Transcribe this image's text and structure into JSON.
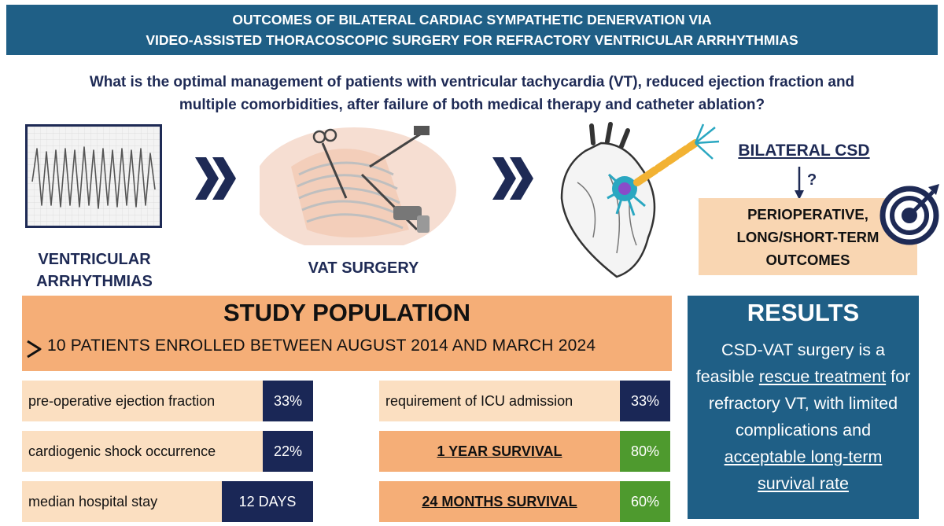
{
  "header": {
    "line1": "OUTCOMES OF BILATERAL CARDIAC SYMPATHETIC DENERVATION VIA",
    "line2": "VIDEO-ASSISTED THORACOSCOPIC SURGERY FOR REFRACTORY VENTRICULAR ARRHYTHMIAS"
  },
  "question": {
    "line1": "What is the optimal management of patients with ventricular tachycardia (VT), reduced ejection fraction and",
    "line2": "multiple comorbidities, after failure of both medical therapy and catheter ablation?"
  },
  "flow": {
    "ecg_label_line1": "VENTRICULAR",
    "ecg_label_line2": "ARRHYTHMIAS",
    "surgery_label": "VAT SURGERY",
    "csd_title": "BILATERAL CSD",
    "question_mark": "?",
    "outcome_line1": "PERIOPERATIVE,",
    "outcome_line2": "LONG/SHORT-TERM",
    "outcome_line3": "OUTCOMES"
  },
  "study": {
    "title": "STUDY POPULATION",
    "subtitle": "10 PATIENTS ENROLLED BETWEEN AUGUST 2014 AND MARCH 2024"
  },
  "stats_left": [
    {
      "label": "pre-operative ejection fraction",
      "value": "33%"
    },
    {
      "label": "cardiogenic shock occurrence",
      "value": "22%"
    },
    {
      "label": "median hospital stay",
      "value": "12 DAYS"
    }
  ],
  "stats_right": [
    {
      "label": "requirement of ICU admission",
      "value": "33%"
    },
    {
      "label": "1 YEAR SURVIVAL",
      "value": "80%"
    },
    {
      "label": "24 MONTHS SURVIVAL",
      "value": "60%"
    }
  ],
  "results": {
    "title": "RESULTS",
    "t1": "CSD-VAT surgery is a feasible ",
    "t2": "rescue treatment",
    "t3": " for refractory VT, with limited complications and ",
    "t4": "acceptable long-term survival rate"
  },
  "colors": {
    "header_blue": "#1f5f86",
    "navy": "#1e2a55",
    "orange": "#f5ae77",
    "light_orange": "#fbdfc1",
    "green": "#4e9a2e"
  },
  "icons": [
    "ecg-icon",
    "chevron-right-icon",
    "surgery-icon",
    "heart-neuron-icon",
    "arrow-down-icon",
    "target-icon",
    "chevron-bullet-icon"
  ]
}
